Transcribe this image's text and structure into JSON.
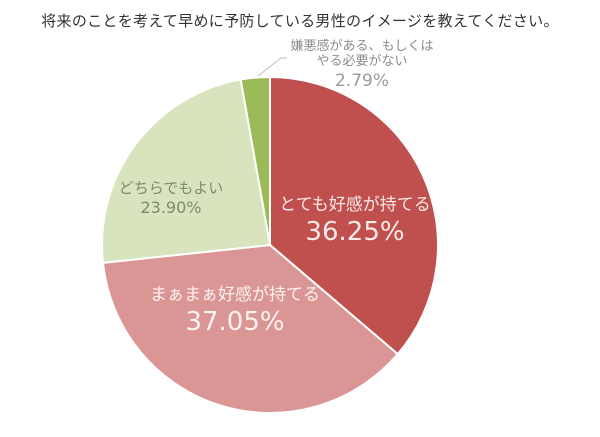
{
  "chart_data": {
    "type": "pie",
    "title": "将来のことを考えて早めに予防している男性のイメージを教えてください。",
    "start_angle": "12 o'clock",
    "direction": "clockwise",
    "slices": [
      {
        "label": "とても好感が持てる",
        "value": 36.25,
        "display": "36.25%",
        "color": "#C0504D"
      },
      {
        "label": "まぁまぁ好感が持てる",
        "value": 37.05,
        "display": "37.05%",
        "color": "#D99694"
      },
      {
        "label": "どちらでもよい",
        "value": 23.9,
        "display": "23.90%",
        "color": "#D7E4BD"
      },
      {
        "label_line1": "嫌悪感がある、もしくは",
        "label_line2": "やる必要がない",
        "label": "嫌悪感がある、もしくはやる必要がない",
        "value": 2.79,
        "display": "2.79%",
        "color": "#9BBB59"
      }
    ],
    "legend": "none (inline labels)"
  }
}
